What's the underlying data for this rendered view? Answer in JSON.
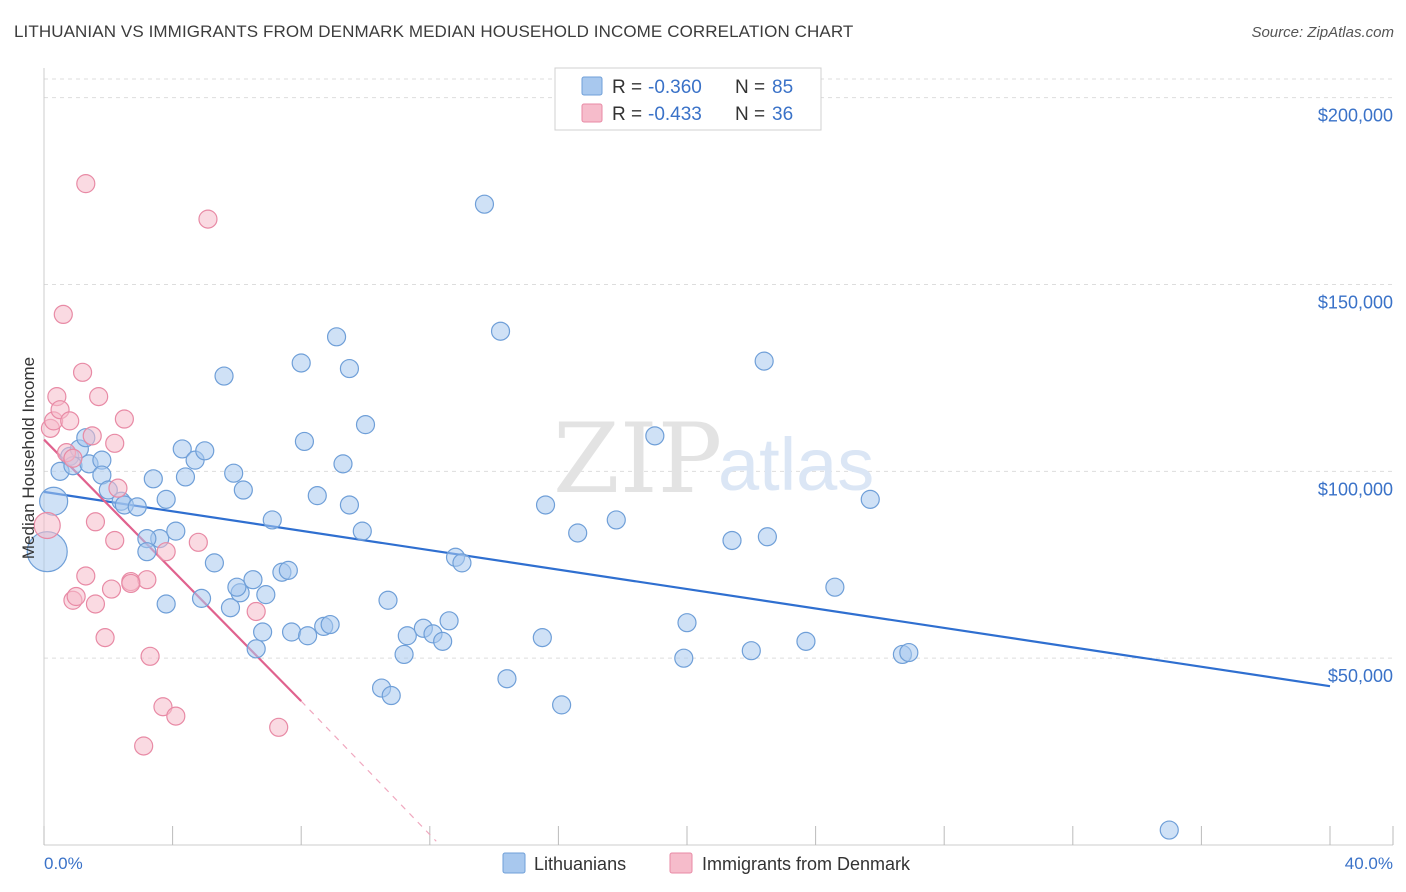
{
  "header": {
    "title": "LITHUANIAN VS IMMIGRANTS FROM DENMARK MEDIAN HOUSEHOLD INCOME CORRELATION CHART",
    "source": "Source: ZipAtlas.com"
  },
  "watermark": {
    "zip": "ZIP",
    "atlas": "atlas"
  },
  "legend": {
    "rows": [
      {
        "r_label": "R =",
        "r_value": "-0.360",
        "n_label": "N =",
        "n_value": "85",
        "color": "#a8c8ee",
        "stroke": "#6f9fd8"
      },
      {
        "r_label": "R =",
        "r_value": "-0.433",
        "n_label": "N =",
        "n_value": "36",
        "color": "#f6bccb",
        "stroke": "#e88aa5"
      }
    ]
  },
  "chart_data": {
    "type": "scatter",
    "title": "LITHUANIAN VS IMMIGRANTS FROM DENMARK MEDIAN HOUSEHOLD INCOME CORRELATION CHART",
    "xlabel": "",
    "ylabel": "Median Household Income",
    "xlim": [
      0,
      40
    ],
    "ylim": [
      0,
      205000
    ],
    "x_tick_labels": [
      "0.0%",
      "40.0%"
    ],
    "y_ticks": [
      50000,
      100000,
      150000,
      200000
    ],
    "y_tick_labels": [
      "$50,000",
      "$100,000",
      "$150,000",
      "$200,000"
    ],
    "series": [
      {
        "name": "Lithuanians",
        "color": "#a8c8ee",
        "stroke": "#6f9fd8",
        "trend": {
          "x0": 0,
          "y0": 94500,
          "x1": 40,
          "y1": 42500,
          "color": "#2f6fd0"
        },
        "points": [
          [
            0.3,
            92000,
            14
          ],
          [
            0.1,
            78500,
            20
          ],
          [
            0.5,
            100000,
            9
          ],
          [
            0.8,
            104000,
            9
          ],
          [
            1.1,
            106000,
            9
          ],
          [
            1.3,
            109000,
            9
          ],
          [
            0.9,
            101500,
            9
          ],
          [
            1.4,
            102000,
            9
          ],
          [
            1.8,
            103000,
            9
          ],
          [
            1.8,
            99000,
            9
          ],
          [
            2.0,
            95000,
            9
          ],
          [
            2.4,
            92000,
            9
          ],
          [
            2.5,
            91000,
            9
          ],
          [
            2.9,
            90500,
            9
          ],
          [
            3.4,
            98000,
            9
          ],
          [
            3.6,
            82000,
            9
          ],
          [
            3.2,
            82000,
            9
          ],
          [
            3.2,
            78500,
            9
          ],
          [
            3.8,
            92500,
            9
          ],
          [
            4.1,
            84000,
            9
          ],
          [
            4.4,
            98500,
            9
          ],
          [
            4.3,
            106000,
            9
          ],
          [
            4.7,
            103000,
            9
          ],
          [
            5.0,
            105500,
            9
          ],
          [
            3.8,
            64500,
            9
          ],
          [
            4.9,
            66000,
            9
          ],
          [
            5.3,
            75500,
            9
          ],
          [
            5.8,
            63500,
            9
          ],
          [
            5.6,
            125500,
            9
          ],
          [
            5.9,
            99500,
            9
          ],
          [
            6.1,
            67500,
            9
          ],
          [
            6.2,
            95000,
            9
          ],
          [
            6.0,
            69000,
            9
          ],
          [
            6.5,
            71000,
            9
          ],
          [
            6.6,
            52500,
            9
          ],
          [
            6.8,
            57000,
            9
          ],
          [
            6.9,
            67000,
            9
          ],
          [
            7.1,
            87000,
            9
          ],
          [
            7.4,
            73000,
            9
          ],
          [
            7.6,
            73500,
            9
          ],
          [
            7.7,
            57000,
            9
          ],
          [
            8.0,
            129000,
            9
          ],
          [
            8.1,
            108000,
            9
          ],
          [
            8.2,
            56000,
            9
          ],
          [
            8.5,
            93500,
            9
          ],
          [
            8.7,
            58500,
            9
          ],
          [
            8.9,
            59000,
            9
          ],
          [
            9.1,
            136000,
            9
          ],
          [
            9.3,
            102000,
            9
          ],
          [
            9.5,
            91000,
            9
          ],
          [
            9.5,
            127500,
            9
          ],
          [
            9.9,
            84000,
            9
          ],
          [
            10.0,
            112500,
            9
          ],
          [
            10.5,
            42000,
            9
          ],
          [
            10.7,
            65500,
            9
          ],
          [
            10.8,
            40000,
            9
          ],
          [
            11.2,
            51000,
            9
          ],
          [
            11.3,
            56000,
            9
          ],
          [
            11.8,
            58000,
            9
          ],
          [
            12.1,
            56500,
            9
          ],
          [
            12.4,
            54500,
            9
          ],
          [
            12.6,
            60000,
            9
          ],
          [
            12.8,
            77000,
            9
          ],
          [
            13.0,
            75500,
            9
          ],
          [
            13.7,
            171500,
            9
          ],
          [
            14.2,
            137500,
            9
          ],
          [
            14.4,
            44500,
            9
          ],
          [
            15.5,
            55500,
            9
          ],
          [
            15.6,
            91000,
            9
          ],
          [
            16.1,
            37500,
            9
          ],
          [
            16.6,
            83500,
            9
          ],
          [
            17.8,
            87000,
            9
          ],
          [
            19.0,
            109500,
            9
          ],
          [
            19.9,
            50000,
            9
          ],
          [
            20.0,
            59500,
            9
          ],
          [
            21.4,
            81500,
            9
          ],
          [
            22.0,
            52000,
            9
          ],
          [
            22.4,
            129500,
            9
          ],
          [
            22.5,
            82500,
            9
          ],
          [
            23.7,
            54500,
            9
          ],
          [
            24.6,
            69000,
            9
          ],
          [
            25.7,
            92500,
            9
          ],
          [
            26.7,
            51000,
            9
          ],
          [
            26.9,
            51500,
            9
          ],
          [
            35.0,
            4000,
            9
          ]
        ]
      },
      {
        "name": "Immigrants from Denmark",
        "color": "#f6bccb",
        "stroke": "#e88aa5",
        "trend": {
          "x0": 0,
          "y0": 108500,
          "x1": 8.0,
          "y1": 38500,
          "color": "#e0628e",
          "dash_to_x": 12.2,
          "dash_to_y": 1000
        },
        "points": [
          [
            0.1,
            85500,
            13
          ],
          [
            0.2,
            111500,
            9
          ],
          [
            0.3,
            113500,
            9
          ],
          [
            0.4,
            120000,
            9
          ],
          [
            0.5,
            116500,
            9
          ],
          [
            0.6,
            142000,
            9
          ],
          [
            0.7,
            105000,
            9
          ],
          [
            0.8,
            113500,
            9
          ],
          [
            0.9,
            103500,
            9
          ],
          [
            0.9,
            65500,
            9
          ],
          [
            1.0,
            66500,
            9
          ],
          [
            1.2,
            126500,
            9
          ],
          [
            1.3,
            177000,
            9
          ],
          [
            1.3,
            72000,
            9
          ],
          [
            1.5,
            109500,
            9
          ],
          [
            1.6,
            86500,
            9
          ],
          [
            1.6,
            64500,
            9
          ],
          [
            1.7,
            120000,
            9
          ],
          [
            1.9,
            55500,
            9
          ],
          [
            2.1,
            68500,
            9
          ],
          [
            2.2,
            81500,
            9
          ],
          [
            2.2,
            107500,
            9
          ],
          [
            2.3,
            95500,
            9
          ],
          [
            2.5,
            114000,
            9
          ],
          [
            2.7,
            70500,
            9
          ],
          [
            3.1,
            26500,
            9
          ],
          [
            3.2,
            71000,
            9
          ],
          [
            3.3,
            50500,
            9
          ],
          [
            3.7,
            37000,
            9
          ],
          [
            3.8,
            78500,
            9
          ],
          [
            4.1,
            34500,
            9
          ],
          [
            4.8,
            81000,
            9
          ],
          [
            5.1,
            167500,
            9
          ],
          [
            6.6,
            62500,
            9
          ],
          [
            7.3,
            31500,
            9
          ],
          [
            2.7,
            70000,
            9
          ]
        ]
      }
    ]
  }
}
